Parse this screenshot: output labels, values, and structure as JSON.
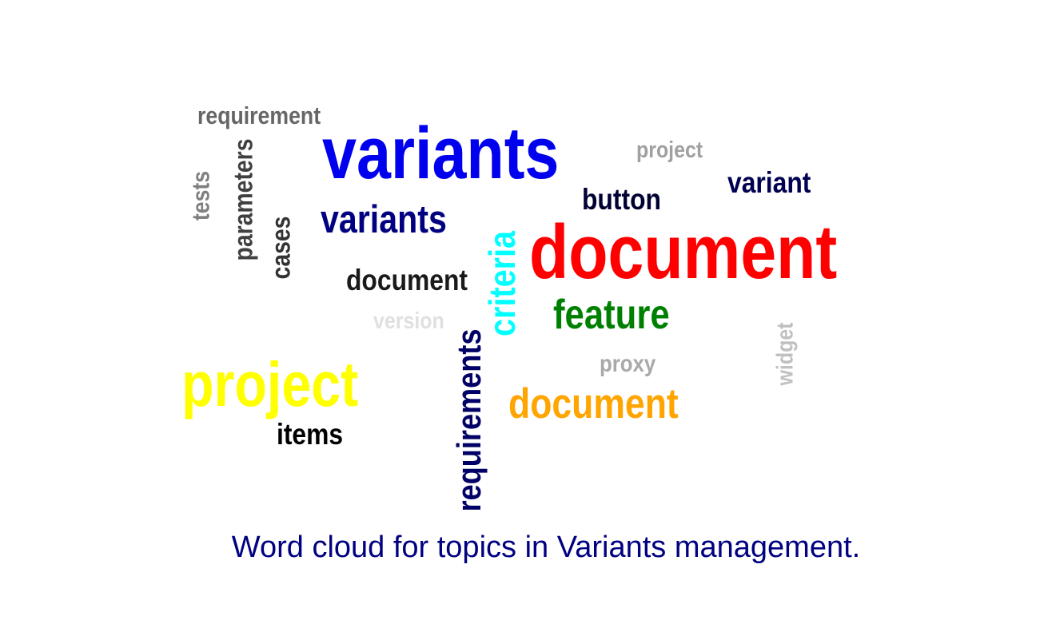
{
  "cloud": {
    "words": {
      "requirement_top": {
        "text": "requirement",
        "color": "#666666"
      },
      "variants_large": {
        "text": "variants",
        "color": "#0000ee"
      },
      "project_gray": {
        "text": "project",
        "color": "#a0a0a0"
      },
      "variant": {
        "text": "variant",
        "color": "#000050"
      },
      "button": {
        "text": "button",
        "color": "#000033"
      },
      "variants_small": {
        "text": "variants",
        "color": "#000080"
      },
      "document_large": {
        "text": "document",
        "color": "#ff0000"
      },
      "document_black": {
        "text": "document",
        "color": "#1a1a1a"
      },
      "feature": {
        "text": "feature",
        "color": "#008000"
      },
      "version": {
        "text": "version",
        "color": "#e0e0e0"
      },
      "proxy": {
        "text": "proxy",
        "color": "#a9a9a9"
      },
      "project_yellow": {
        "text": "project",
        "color": "#ffff00"
      },
      "document_orange": {
        "text": "document",
        "color": "#ffa500"
      },
      "items": {
        "text": "items",
        "color": "#000000"
      },
      "tests": {
        "text": "tests",
        "color": "#808080"
      },
      "parameters": {
        "text": "parameters",
        "color": "#404040"
      },
      "cases": {
        "text": "cases",
        "color": "#333333"
      },
      "criteria": {
        "text": "criteria",
        "color": "#00ffff"
      },
      "requirements": {
        "text": "requirements",
        "color": "#000066"
      },
      "widget": {
        "text": "widget",
        "color": "#c0c0c0"
      }
    }
  },
  "caption": {
    "text": "Word cloud for topics in Variants management.",
    "color": "#000080"
  }
}
